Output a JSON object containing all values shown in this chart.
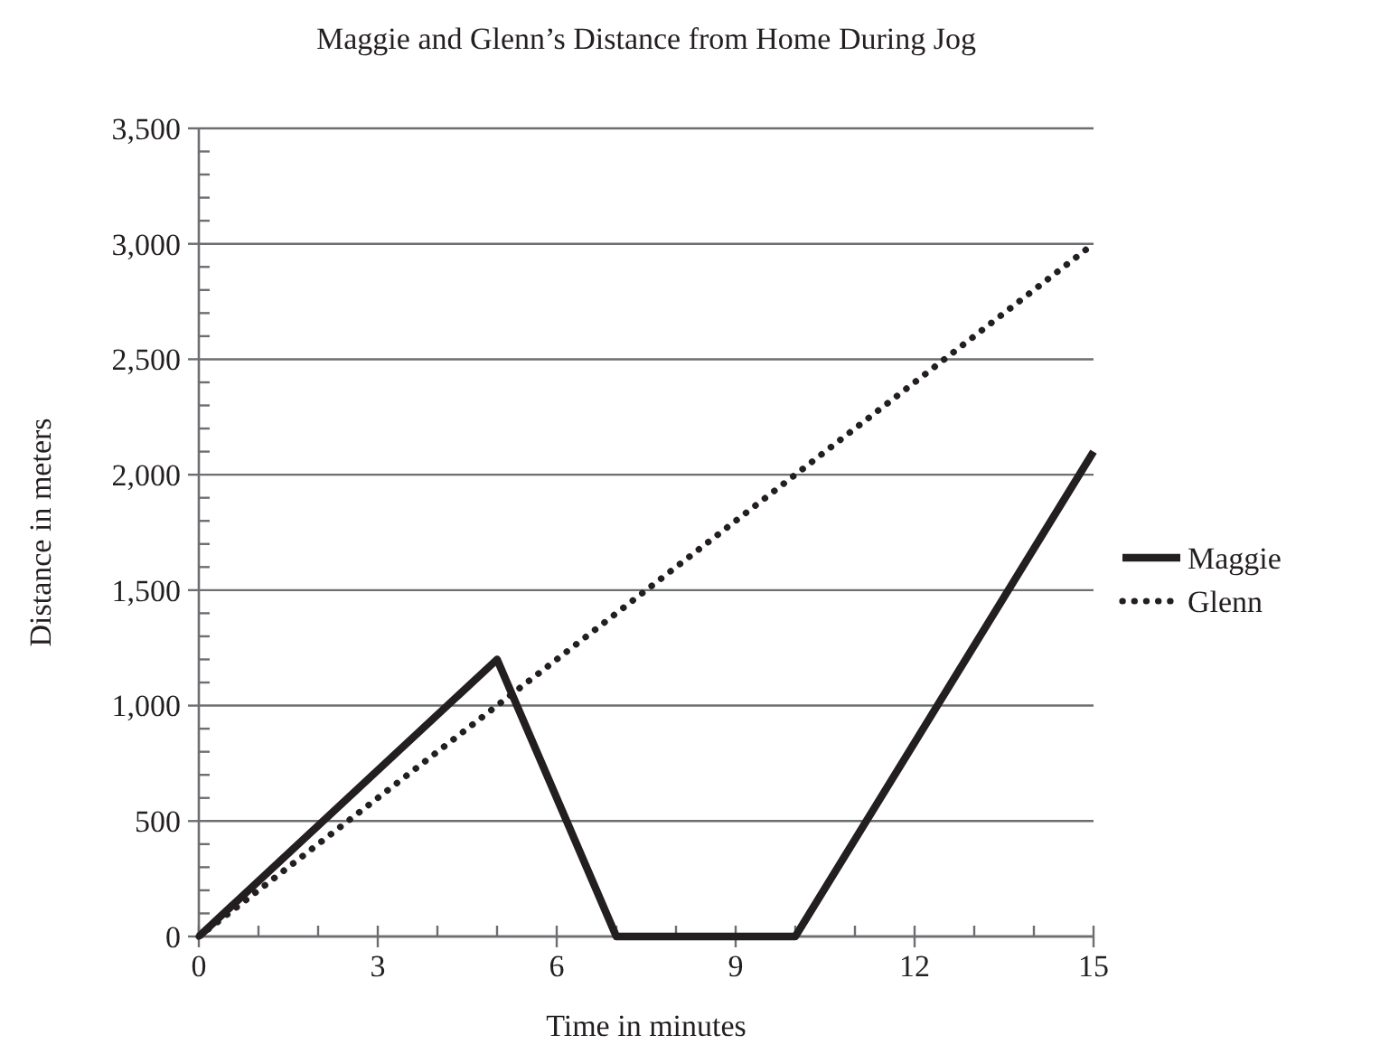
{
  "chart_data": {
    "type": "line",
    "title": "Maggie and Glenn’s Distance from Home During Jog",
    "xlabel": "Time in minutes",
    "ylabel": "Distance in meters",
    "series": [
      {
        "name": "Maggie",
        "color": "#231f20",
        "x": [
          0,
          5,
          7,
          10,
          15
        ],
        "values": [
          0,
          1200,
          0,
          0,
          2100
        ],
        "line_style": "solid"
      },
      {
        "name": "Glenn",
        "color": "#231f20",
        "x": [
          0,
          15
        ],
        "values": [
          0,
          3000
        ],
        "line_style": "dotted"
      }
    ],
    "xlim": [
      0,
      15
    ],
    "ylim": [
      0,
      3500
    ],
    "xticks": [
      0,
      {
        "value": 1,
        "label": null
      },
      {
        "value": 2,
        "label": null
      },
      3,
      {
        "value": 4,
        "label": null
      },
      {
        "value": 5,
        "label": null
      },
      6,
      {
        "value": 7,
        "label": null
      },
      {
        "value": 8,
        "label": null
      },
      9,
      {
        "value": 10,
        "label": null
      },
      {
        "value": 11,
        "label": null
      },
      12,
      {
        "value": 13,
        "label": null
      },
      {
        "value": 14,
        "label": null
      },
      15
    ],
    "yticks": [
      0,
      {
        "value": 100,
        "label": null
      },
      {
        "value": 200,
        "label": null
      },
      {
        "value": 300,
        "label": null
      },
      {
        "value": 400,
        "label": null
      },
      500,
      {
        "value": 600,
        "label": null
      },
      {
        "value": 700,
        "label": null
      },
      {
        "value": 800,
        "label": null
      },
      {
        "value": 900,
        "label": null
      },
      {
        "value": 1000,
        "label": "1,000"
      },
      {
        "value": 1100,
        "label": null
      },
      {
        "value": 1200,
        "label": null
      },
      {
        "value": 1300,
        "label": null
      },
      {
        "value": 1400,
        "label": null
      },
      {
        "value": 1500,
        "label": "1,500"
      },
      {
        "value": 1600,
        "label": null
      },
      {
        "value": 1700,
        "label": null
      },
      {
        "value": 1800,
        "label": null
      },
      {
        "value": 1900,
        "label": null
      },
      {
        "value": 2000,
        "label": "2,000"
      },
      {
        "value": 2100,
        "label": null
      },
      {
        "value": 2200,
        "label": null
      },
      {
        "value": 2300,
        "label": null
      },
      {
        "value": 2400,
        "label": null
      },
      {
        "value": 2500,
        "label": "2,500"
      },
      {
        "value": 2600,
        "label": null
      },
      {
        "value": 2700,
        "label": null
      },
      {
        "value": 2800,
        "label": null
      },
      {
        "value": 2900,
        "label": null
      },
      {
        "value": 3000,
        "label": "3,000"
      },
      {
        "value": 3100,
        "label": null
      },
      {
        "value": 3200,
        "label": null
      },
      {
        "value": 3300,
        "label": null
      },
      {
        "value": 3400,
        "label": null
      },
      {
        "value": 3500,
        "label": "3,500"
      }
    ],
    "grid": "y",
    "legend": "right",
    "marker": "none"
  }
}
